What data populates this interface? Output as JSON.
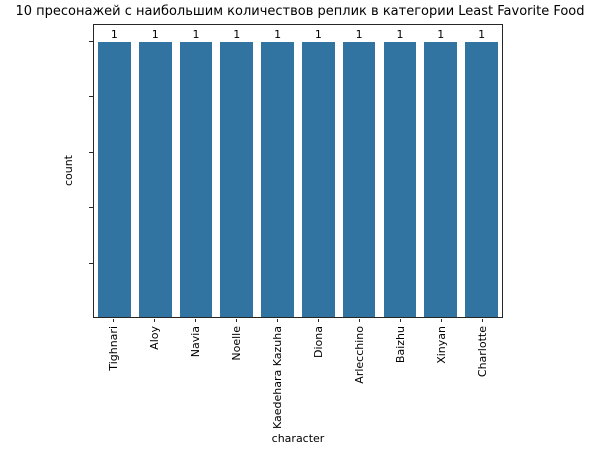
{
  "chart_data": {
    "type": "bar",
    "title": "10 пресонажей с наибольшим количествов реплик в категории Least Favorite Food",
    "xlabel": "character",
    "ylabel": "count",
    "categories": [
      "Tighnari",
      "Aloy",
      "Navia",
      "Noelle",
      "Kaedehara Kazuha",
      "Diona",
      "Arlecchino",
      "Baizhu",
      "Xinyan",
      "Charlotte"
    ],
    "values": [
      1,
      1,
      1,
      1,
      1,
      1,
      1,
      1,
      1,
      1
    ],
    "bar_labels": [
      "1",
      "1",
      "1",
      "1",
      "1",
      "1",
      "1",
      "1",
      "1",
      "1"
    ],
    "ylim": [
      0,
      1.06
    ],
    "yticks": [
      0.2,
      0.4,
      0.6,
      0.8,
      1.0
    ],
    "ytick_labels_shown": false,
    "grid": false,
    "legend": "none",
    "bar_color": "#3274A1",
    "spine_color": "#262626",
    "background_color": "#ffffff",
    "text_color": "#000000"
  }
}
